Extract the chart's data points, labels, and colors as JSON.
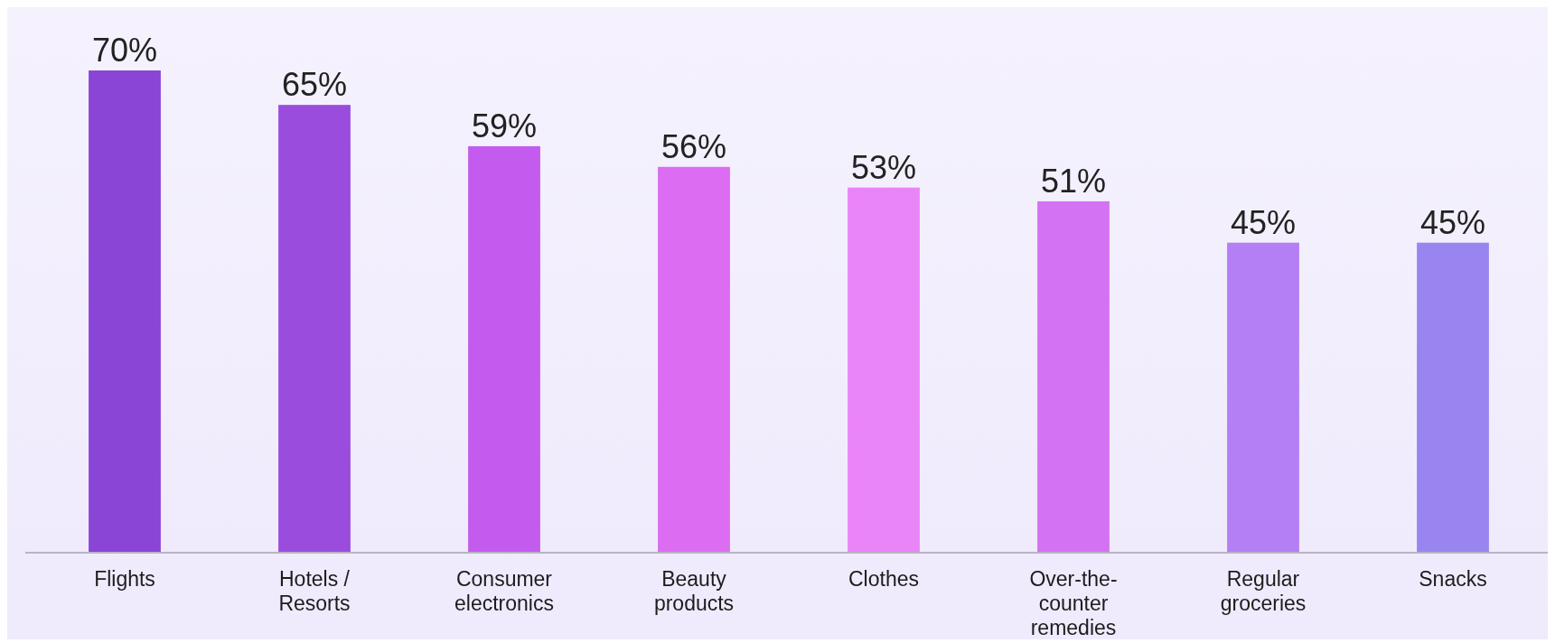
{
  "chart_data": {
    "type": "bar",
    "categories": [
      "Flights",
      "Hotels / Resorts",
      "Consumer electronics",
      "Beauty products",
      "Clothes",
      "Over-the-counter remedies",
      "Regular groceries",
      "Snacks"
    ],
    "values": [
      70,
      65,
      59,
      56,
      53,
      51,
      45,
      45
    ],
    "value_labels": [
      "70%",
      "65%",
      "59%",
      "56%",
      "53%",
      "51%",
      "45%",
      "45%"
    ],
    "colors": [
      "#8a44d6",
      "#9a4ddd",
      "#c35cee",
      "#dc6cf2",
      "#e985f6",
      "#d472f4",
      "#b47ff4",
      "#9a85f0"
    ]
  }
}
